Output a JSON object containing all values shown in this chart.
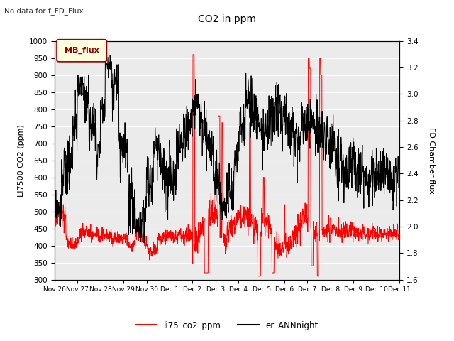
{
  "title": "CO2 in ppm",
  "subtitle": "No data for f_FD_Flux",
  "ylabel_left": "LI7500 CO2 (ppm)",
  "ylabel_right": "FD Chamber flux",
  "ylim_left": [
    300,
    1000
  ],
  "ylim_right": [
    1.6,
    3.4
  ],
  "legend_entries": [
    "li75_co2_ppm",
    "er_ANNnight"
  ],
  "legend_colors": [
    "#ff0000",
    "#000000"
  ],
  "mb_flux_box_color": "#ffffe0",
  "mb_flux_text_color": "#990000",
  "date_labels": [
    "Nov 26",
    "Nov 27",
    "Nov 28",
    "Nov 29",
    "Nov 30",
    "Dec 1",
    "Dec 2",
    "Dec 3",
    "Dec 4",
    "Dec 5",
    "Dec 6",
    "Dec 7",
    "Dec 8",
    "Dec 9",
    "Dec 10",
    "Dec 11"
  ],
  "yticks_left": [
    300,
    350,
    400,
    450,
    500,
    550,
    600,
    650,
    700,
    750,
    800,
    850,
    900,
    950,
    1000
  ],
  "yticks_right": [
    1.6,
    1.8,
    2.0,
    2.2,
    2.4,
    2.6,
    2.8,
    3.0,
    3.2,
    3.4
  ],
  "line_color_red": "#ff0000",
  "line_color_black": "#000000",
  "background_color": "#ebebeb",
  "grid_color": "#ffffff"
}
